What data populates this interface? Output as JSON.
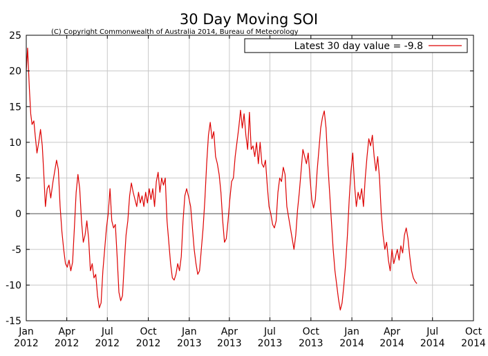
{
  "chart_data": {
    "type": "line",
    "title": "30 Day Moving SOI",
    "subtitle": "(C) Copyright Commonwealth of Australia 2014, Bureau of Meteorology",
    "xlabel": "",
    "ylabel": "",
    "ylim": [
      -15,
      25
    ],
    "y_ticks": [
      -15,
      -10,
      -5,
      0,
      5,
      10,
      15,
      20,
      25
    ],
    "x_range": [
      "2012-01-01",
      "2014-10-01"
    ],
    "x_ticks": [
      {
        "date": "2012-01-01",
        "month": "Jan",
        "year": "2012"
      },
      {
        "date": "2012-04-01",
        "month": "Apr",
        "year": "2012"
      },
      {
        "date": "2012-07-01",
        "month": "Jul",
        "year": "2012"
      },
      {
        "date": "2012-10-01",
        "month": "Oct",
        "year": "2012"
      },
      {
        "date": "2013-01-01",
        "month": "Jan",
        "year": "2013"
      },
      {
        "date": "2013-04-01",
        "month": "Apr",
        "year": "2013"
      },
      {
        "date": "2013-07-01",
        "month": "Jul",
        "year": "2013"
      },
      {
        "date": "2013-10-01",
        "month": "Oct",
        "year": "2013"
      },
      {
        "date": "2014-01-01",
        "month": "Jan",
        "year": "2014"
      },
      {
        "date": "2014-04-01",
        "month": "Apr",
        "year": "2014"
      },
      {
        "date": "2014-07-01",
        "month": "Jul",
        "year": "2014"
      },
      {
        "date": "2014-10-01",
        "month": "Oct",
        "year": "2014"
      }
    ],
    "grid": true,
    "legend_position": "top-right",
    "series": [
      {
        "name": "Latest 30 day value = -9.8",
        "color": "#dd0000",
        "points": [
          [
            "2012-01-01",
            20.0
          ],
          [
            "2012-01-04",
            23.2
          ],
          [
            "2012-01-08",
            17.5
          ],
          [
            "2012-01-11",
            14.0
          ],
          [
            "2012-01-14",
            12.5
          ],
          [
            "2012-01-18",
            13.0
          ],
          [
            "2012-01-21",
            11.0
          ],
          [
            "2012-01-25",
            8.5
          ],
          [
            "2012-01-29",
            10.0
          ],
          [
            "2012-02-02",
            11.8
          ],
          [
            "2012-02-06",
            9.5
          ],
          [
            "2012-02-09",
            6.0
          ],
          [
            "2012-02-13",
            1.0
          ],
          [
            "2012-02-17",
            3.5
          ],
          [
            "2012-02-21",
            4.0
          ],
          [
            "2012-02-25",
            2.2
          ],
          [
            "2012-03-01",
            4.5
          ],
          [
            "2012-03-05",
            6.0
          ],
          [
            "2012-03-09",
            7.5
          ],
          [
            "2012-03-13",
            6.2
          ],
          [
            "2012-03-17",
            1.0
          ],
          [
            "2012-03-21",
            -2.5
          ],
          [
            "2012-03-25",
            -5.0
          ],
          [
            "2012-03-29",
            -7.0
          ],
          [
            "2012-04-02",
            -7.5
          ],
          [
            "2012-04-06",
            -6.5
          ],
          [
            "2012-04-10",
            -8.0
          ],
          [
            "2012-04-14",
            -6.8
          ],
          [
            "2012-04-18",
            -2.0
          ],
          [
            "2012-04-22",
            3.0
          ],
          [
            "2012-04-26",
            5.5
          ],
          [
            "2012-04-30",
            3.5
          ],
          [
            "2012-05-04",
            -1.0
          ],
          [
            "2012-05-08",
            -4.0
          ],
          [
            "2012-05-12",
            -3.0
          ],
          [
            "2012-05-16",
            -1.0
          ],
          [
            "2012-05-20",
            -3.5
          ],
          [
            "2012-05-24",
            -8.0
          ],
          [
            "2012-05-28",
            -7.0
          ],
          [
            "2012-06-01",
            -9.0
          ],
          [
            "2012-06-05",
            -8.5
          ],
          [
            "2012-06-09",
            -11.5
          ],
          [
            "2012-06-13",
            -13.2
          ],
          [
            "2012-06-17",
            -12.5
          ],
          [
            "2012-06-21",
            -8.0
          ],
          [
            "2012-06-25",
            -5.0
          ],
          [
            "2012-06-29",
            -2.0
          ],
          [
            "2012-07-03",
            0.0
          ],
          [
            "2012-07-07",
            3.5
          ],
          [
            "2012-07-11",
            -1.0
          ],
          [
            "2012-07-15",
            -2.0
          ],
          [
            "2012-07-19",
            -1.5
          ],
          [
            "2012-07-23",
            -6.0
          ],
          [
            "2012-07-27",
            -11.0
          ],
          [
            "2012-07-31",
            -12.2
          ],
          [
            "2012-08-04",
            -11.5
          ],
          [
            "2012-08-08",
            -7.0
          ],
          [
            "2012-08-12",
            -3.0
          ],
          [
            "2012-08-16",
            -1.0
          ],
          [
            "2012-08-20",
            2.5
          ],
          [
            "2012-08-24",
            4.3
          ],
          [
            "2012-08-28",
            3.0
          ],
          [
            "2012-09-01",
            2.0
          ],
          [
            "2012-09-05",
            1.0
          ],
          [
            "2012-09-09",
            3.0
          ],
          [
            "2012-09-13",
            1.5
          ],
          [
            "2012-09-17",
            2.5
          ],
          [
            "2012-09-21",
            1.0
          ],
          [
            "2012-09-25",
            3.0
          ],
          [
            "2012-09-29",
            1.5
          ],
          [
            "2012-10-03",
            3.5
          ],
          [
            "2012-10-07",
            2.0
          ],
          [
            "2012-10-11",
            3.5
          ],
          [
            "2012-10-15",
            1.0
          ],
          [
            "2012-10-19",
            4.5
          ],
          [
            "2012-10-23",
            5.8
          ],
          [
            "2012-10-27",
            3.0
          ],
          [
            "2012-10-31",
            5.0
          ],
          [
            "2012-11-04",
            4.0
          ],
          [
            "2012-11-08",
            5.0
          ],
          [
            "2012-11-12",
            -1.0
          ],
          [
            "2012-11-16",
            -4.0
          ],
          [
            "2012-11-20",
            -7.0
          ],
          [
            "2012-11-24",
            -9.0
          ],
          [
            "2012-11-28",
            -9.3
          ],
          [
            "2012-12-02",
            -8.5
          ],
          [
            "2012-12-06",
            -7.0
          ],
          [
            "2012-12-10",
            -8.0
          ],
          [
            "2012-12-14",
            -6.0
          ],
          [
            "2012-12-18",
            -1.0
          ],
          [
            "2012-12-22",
            2.5
          ],
          [
            "2012-12-26",
            3.5
          ],
          [
            "2012-12-30",
            2.5
          ],
          [
            "2013-01-04",
            1.0
          ],
          [
            "2013-01-08",
            -2.0
          ],
          [
            "2013-01-12",
            -5.0
          ],
          [
            "2013-01-16",
            -7.0
          ],
          [
            "2013-01-20",
            -8.5
          ],
          [
            "2013-01-24",
            -8.0
          ],
          [
            "2013-01-28",
            -5.0
          ],
          [
            "2013-02-01",
            -2.0
          ],
          [
            "2013-02-05",
            2.0
          ],
          [
            "2013-02-09",
            7.0
          ],
          [
            "2013-02-13",
            11.0
          ],
          [
            "2013-02-17",
            12.8
          ],
          [
            "2013-02-21",
            10.5
          ],
          [
            "2013-02-25",
            11.5
          ],
          [
            "2013-03-01",
            8.0
          ],
          [
            "2013-03-05",
            7.0
          ],
          [
            "2013-03-09",
            5.5
          ],
          [
            "2013-03-13",
            3.0
          ],
          [
            "2013-03-17",
            -1.0
          ],
          [
            "2013-03-21",
            -4.0
          ],
          [
            "2013-03-25",
            -3.5
          ],
          [
            "2013-03-29",
            -1.0
          ],
          [
            "2013-04-02",
            2.0
          ],
          [
            "2013-04-06",
            4.5
          ],
          [
            "2013-04-10",
            5.0
          ],
          [
            "2013-04-14",
            8.0
          ],
          [
            "2013-04-18",
            10.0
          ],
          [
            "2013-04-22",
            12.0
          ],
          [
            "2013-04-26",
            14.5
          ],
          [
            "2013-04-30",
            12.0
          ],
          [
            "2013-05-04",
            14.0
          ],
          [
            "2013-05-08",
            11.0
          ],
          [
            "2013-05-12",
            9.0
          ],
          [
            "2013-05-16",
            14.2
          ],
          [
            "2013-05-20",
            9.0
          ],
          [
            "2013-05-24",
            9.5
          ],
          [
            "2013-05-28",
            8.0
          ],
          [
            "2013-06-01",
            10.0
          ],
          [
            "2013-06-05",
            7.0
          ],
          [
            "2013-06-09",
            10.0
          ],
          [
            "2013-06-13",
            7.0
          ],
          [
            "2013-06-17",
            6.5
          ],
          [
            "2013-06-21",
            7.5
          ],
          [
            "2013-06-25",
            4.0
          ],
          [
            "2013-06-29",
            1.0
          ],
          [
            "2013-07-03",
            0.0
          ],
          [
            "2013-07-07",
            -1.5
          ],
          [
            "2013-07-11",
            -2.0
          ],
          [
            "2013-07-15",
            -1.0
          ],
          [
            "2013-07-19",
            3.0
          ],
          [
            "2013-07-23",
            5.0
          ],
          [
            "2013-07-27",
            4.5
          ],
          [
            "2013-07-31",
            6.5
          ],
          [
            "2013-08-04",
            5.5
          ],
          [
            "2013-08-08",
            1.0
          ],
          [
            "2013-08-12",
            -0.5
          ],
          [
            "2013-08-16",
            -2.0
          ],
          [
            "2013-08-20",
            -3.5
          ],
          [
            "2013-08-24",
            -5.0
          ],
          [
            "2013-08-28",
            -3.0
          ],
          [
            "2013-09-01",
            0.5
          ],
          [
            "2013-09-05",
            3.0
          ],
          [
            "2013-09-09",
            6.0
          ],
          [
            "2013-09-13",
            9.0
          ],
          [
            "2013-09-17",
            8.0
          ],
          [
            "2013-09-21",
            7.0
          ],
          [
            "2013-09-25",
            8.5
          ],
          [
            "2013-09-29",
            5.0
          ],
          [
            "2013-10-03",
            2.0
          ],
          [
            "2013-10-07",
            0.8
          ],
          [
            "2013-10-11",
            2.0
          ],
          [
            "2013-10-15",
            6.0
          ],
          [
            "2013-10-19",
            9.0
          ],
          [
            "2013-10-23",
            12.0
          ],
          [
            "2013-10-27",
            13.5
          ],
          [
            "2013-10-31",
            14.4
          ],
          [
            "2013-11-04",
            12.0
          ],
          [
            "2013-11-08",
            7.0
          ],
          [
            "2013-11-12",
            3.0
          ],
          [
            "2013-11-16",
            -1.0
          ],
          [
            "2013-11-20",
            -5.0
          ],
          [
            "2013-11-24",
            -8.0
          ],
          [
            "2013-11-28",
            -10.0
          ],
          [
            "2013-12-02",
            -12.0
          ],
          [
            "2013-12-06",
            -13.5
          ],
          [
            "2013-12-10",
            -12.5
          ],
          [
            "2013-12-14",
            -10.0
          ],
          [
            "2013-12-18",
            -7.0
          ],
          [
            "2013-12-22",
            -3.0
          ],
          [
            "2013-12-26",
            2.0
          ],
          [
            "2013-12-30",
            6.0
          ],
          [
            "2014-01-03",
            8.5
          ],
          [
            "2014-01-07",
            4.0
          ],
          [
            "2014-01-11",
            1.0
          ],
          [
            "2014-01-15",
            3.0
          ],
          [
            "2014-01-19",
            2.0
          ],
          [
            "2014-01-23",
            3.5
          ],
          [
            "2014-01-27",
            1.0
          ],
          [
            "2014-01-31",
            5.0
          ],
          [
            "2014-02-04",
            8.0
          ],
          [
            "2014-02-08",
            10.5
          ],
          [
            "2014-02-12",
            9.5
          ],
          [
            "2014-02-16",
            11.0
          ],
          [
            "2014-02-20",
            8.0
          ],
          [
            "2014-02-24",
            6.0
          ],
          [
            "2014-02-28",
            8.0
          ],
          [
            "2014-03-04",
            5.0
          ],
          [
            "2014-03-08",
            0.0
          ],
          [
            "2014-03-12",
            -3.0
          ],
          [
            "2014-03-16",
            -5.0
          ],
          [
            "2014-03-20",
            -4.0
          ],
          [
            "2014-03-24",
            -6.5
          ],
          [
            "2014-03-28",
            -8.0
          ],
          [
            "2014-04-01",
            -5.0
          ],
          [
            "2014-04-05",
            -7.0
          ],
          [
            "2014-04-09",
            -6.0
          ],
          [
            "2014-04-13",
            -5.0
          ],
          [
            "2014-04-17",
            -6.5
          ],
          [
            "2014-04-21",
            -4.5
          ],
          [
            "2014-04-25",
            -5.5
          ],
          [
            "2014-04-29",
            -3.0
          ],
          [
            "2014-05-03",
            -2.0
          ],
          [
            "2014-05-07",
            -3.5
          ],
          [
            "2014-05-11",
            -6.0
          ],
          [
            "2014-05-15",
            -8.0
          ],
          [
            "2014-05-19",
            -9.0
          ],
          [
            "2014-05-23",
            -9.5
          ],
          [
            "2014-05-27",
            -9.8
          ]
        ]
      }
    ]
  }
}
